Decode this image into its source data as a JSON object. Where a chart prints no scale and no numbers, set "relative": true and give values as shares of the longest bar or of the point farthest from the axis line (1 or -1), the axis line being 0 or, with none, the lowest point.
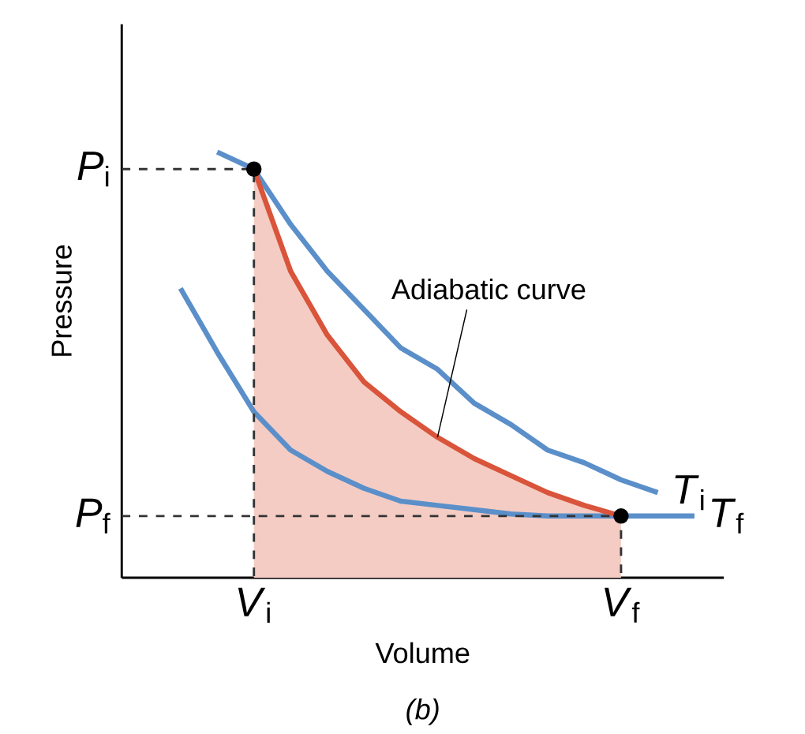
{
  "chart_data": {
    "type": "line",
    "xlabel": "Volume",
    "ylabel": "Pressure",
    "relative": true,
    "categories": [
      null,
      null,
      "*V*$_{i}$",
      null,
      null,
      null,
      null,
      null,
      null,
      null,
      null,
      null,
      "*V*$_{f}$",
      null,
      null
    ],
    "series": [
      {
        "name": "*T*$_{i}$",
        "color": "#5b8fc9",
        "values": [
          null,
          1,
          0.96,
          0.83,
          0.72,
          0.63,
          0.54,
          0.49,
          0.41,
          0.36,
          0.3,
          0.27,
          0.23,
          0.2,
          null
        ]
      },
      {
        "name": "*T*$_{f}$",
        "color": "#5b8fc9",
        "values": [
          0.68,
          0.53,
          0.39,
          0.3,
          0.25,
          0.21,
          0.18,
          0.17,
          0.16,
          0.15,
          0.145,
          0.145,
          0.145,
          0.145,
          0.145
        ]
      },
      {
        "type": "area",
        "color": "#d9543a",
        "values": [
          null,
          null,
          0.96,
          0.72,
          0.57,
          0.46,
          0.39,
          0.33,
          0.28,
          0.24,
          0.2,
          0.17,
          0.145,
          null,
          null
        ]
      },
      {
        "type": "scatter",
        "marker": "circle",
        "line_style": "dashed",
        "color": "#000000",
        "values": [
          null,
          null,
          0.96,
          null,
          null,
          null,
          null,
          null,
          null,
          null,
          null,
          null,
          0.145,
          null,
          null
        ]
      }
    ],
    "annotations": [
      "Adiabatic curve",
      "*P*$_{i}$",
      "*P*$_{f}$",
      "(b)"
    ]
  }
}
